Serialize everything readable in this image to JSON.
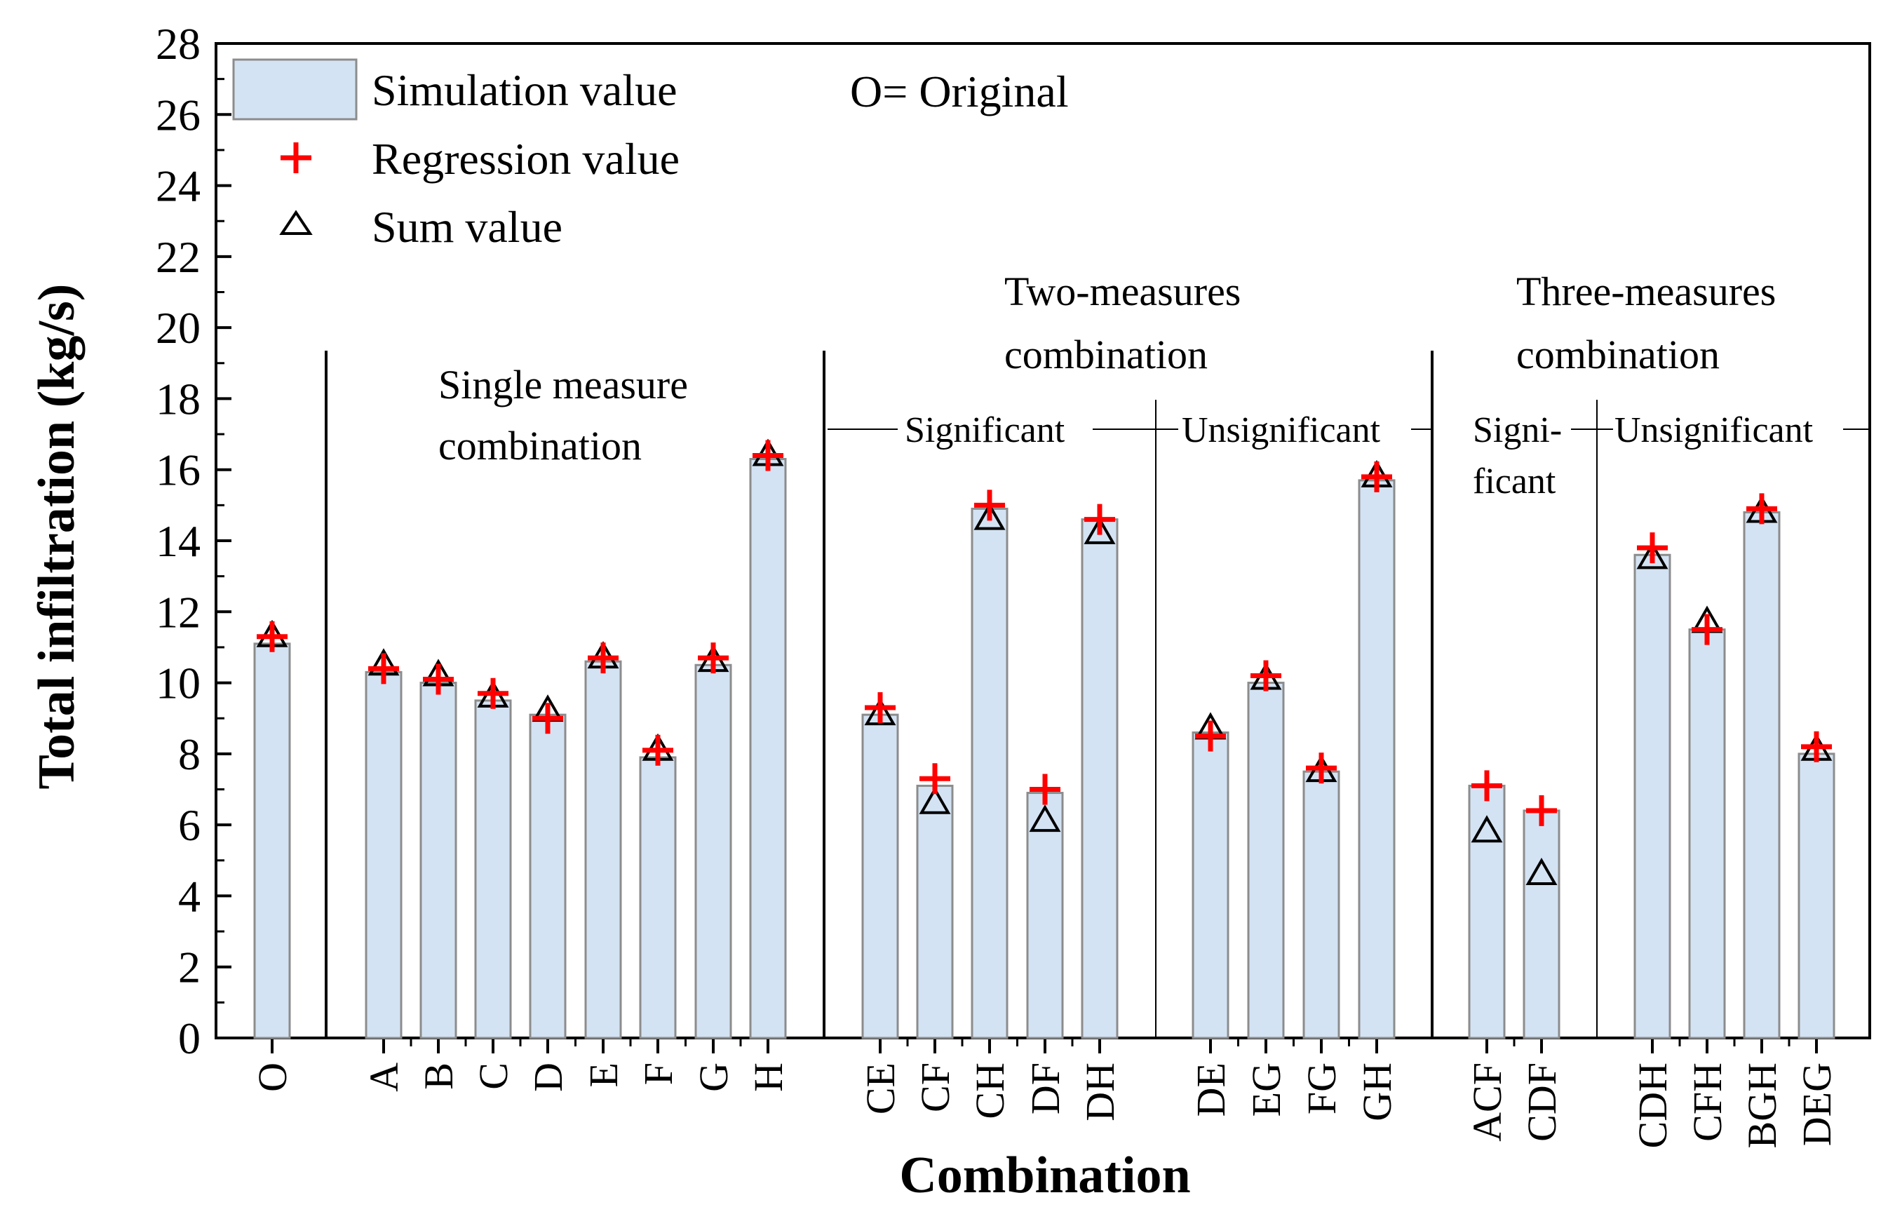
{
  "chart_data": {
    "type": "bar",
    "title": "",
    "xlabel": "Combination",
    "ylabel": "Total infiltration (kg/s)",
    "ylim": [
      0,
      28
    ],
    "yticks": [
      0,
      2,
      4,
      6,
      8,
      10,
      12,
      14,
      16,
      18,
      20,
      22,
      24,
      26,
      28
    ],
    "grid": false,
    "legend_position": "top-left",
    "categories": [
      "O",
      "A",
      "B",
      "C",
      "D",
      "E",
      "F",
      "G",
      "H",
      "CE",
      "CF",
      "CH",
      "DF",
      "DH",
      "DE",
      "EG",
      "FG",
      "GH",
      "ACF",
      "CDF",
      "CDH",
      "CFH",
      "BGH",
      "DEG"
    ],
    "series": [
      {
        "name": "Simulation value",
        "kind": "bar",
        "color": "#d4e3f3",
        "values": [
          11.1,
          10.3,
          10.0,
          9.5,
          9.1,
          10.6,
          7.9,
          10.5,
          16.3,
          9.1,
          7.1,
          14.9,
          6.9,
          14.6,
          8.6,
          10.0,
          7.5,
          15.7,
          7.1,
          6.4,
          13.6,
          11.5,
          14.8,
          8.0
        ]
      },
      {
        "name": "Regression value",
        "kind": "marker",
        "symbol": "plus",
        "color": "#ff0000",
        "values": [
          11.3,
          10.4,
          10.1,
          9.7,
          9.0,
          10.7,
          8.1,
          10.7,
          16.4,
          9.3,
          7.3,
          15.0,
          7.0,
          14.6,
          8.5,
          10.2,
          7.6,
          15.8,
          7.1,
          6.4,
          13.8,
          11.5,
          14.9,
          8.2
        ]
      },
      {
        "name": "Sum value",
        "kind": "marker",
        "symbol": "triangle",
        "color": "#000000",
        "values": [
          11.3,
          10.5,
          10.2,
          9.6,
          9.2,
          10.7,
          8.1,
          10.6,
          16.4,
          9.1,
          6.6,
          14.6,
          6.1,
          14.2,
          8.7,
          10.1,
          7.5,
          15.8,
          5.8,
          4.6,
          13.5,
          11.7,
          14.8,
          8.1
        ]
      }
    ],
    "annotations": {
      "original_note": "O= Original",
      "single_group": [
        "Single measure",
        "combination"
      ],
      "two_group": [
        "Two-measures",
        "combination"
      ],
      "three_group": [
        "Three-measures",
        "combination"
      ],
      "two_significant": "Significant",
      "two_unsignificant": "Unsignificant",
      "three_significant": [
        "Signi-",
        "ficant"
      ],
      "three_unsignificant": "Unsignificant"
    }
  }
}
